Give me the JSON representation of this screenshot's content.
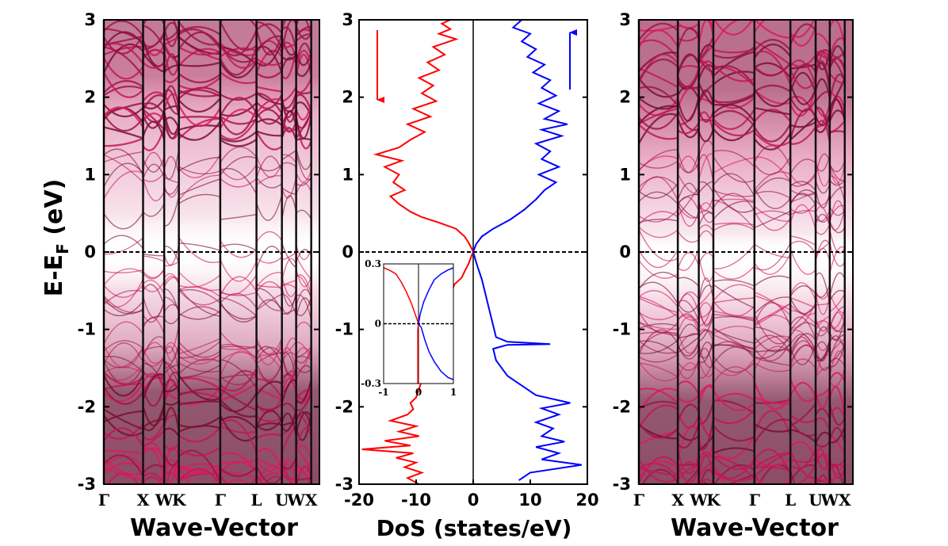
{
  "chart_data": [
    {
      "type": "heatmap",
      "panel": "band-structure-left",
      "ylabel": "E-E",
      "ylabel_sub": "F",
      "ylabel_unit": " (eV)",
      "xlabel": "Wave-Vector",
      "ylim": [
        -3,
        3
      ],
      "yticks": [
        -3,
        -2,
        -1,
        0,
        1,
        2,
        3
      ],
      "kpoints": [
        "Γ",
        "X",
        "W",
        "K",
        "Γ",
        "L",
        "U",
        "W",
        "X"
      ],
      "kpoint_positions": [
        0.0,
        0.182,
        0.28,
        0.348,
        0.54,
        0.708,
        0.826,
        0.892,
        0.962
      ],
      "fermi_level": 0,
      "colormap": [
        "#ffffff",
        "#c2185b",
        "#5a0022"
      ]
    },
    {
      "type": "line",
      "panel": "dos",
      "xlabel": "DoS (states/eV)",
      "xlim": [
        -20,
        20
      ],
      "ylim": [
        -3,
        3
      ],
      "xticks": [
        -20,
        -10,
        0,
        10,
        20
      ],
      "yticks": [
        -3,
        -2,
        -1,
        0,
        1,
        2,
        3
      ],
      "series": [
        {
          "spin": "down",
          "color": "#ff0000",
          "points": [
            [
              -9.5,
              -3.0
            ],
            [
              -11.5,
              -2.92
            ],
            [
              -9.0,
              -2.85
            ],
            [
              -12.0,
              -2.78
            ],
            [
              -10.0,
              -2.72
            ],
            [
              -13.5,
              -2.66
            ],
            [
              -10.5,
              -2.6
            ],
            [
              -19.5,
              -2.55
            ],
            [
              -11.0,
              -2.5
            ],
            [
              -15.5,
              -2.44
            ],
            [
              -9.5,
              -2.38
            ],
            [
              -13.0,
              -2.32
            ],
            [
              -10.0,
              -2.25
            ],
            [
              -14.5,
              -2.18
            ],
            [
              -11.5,
              -2.1
            ],
            [
              -10.5,
              -2.03
            ],
            [
              -11.0,
              -1.95
            ],
            [
              -10.0,
              -1.88
            ],
            [
              -3.3,
              -0.42
            ],
            [
              -2.0,
              -0.33
            ],
            [
              -1.5,
              -0.25
            ],
            [
              -0.8,
              -0.15
            ],
            [
              -0.3,
              -0.05
            ],
            [
              0.0,
              0.0
            ],
            [
              -0.3,
              0.05
            ],
            [
              -0.8,
              0.12
            ],
            [
              -1.5,
              0.2
            ],
            [
              -3.0,
              0.3
            ],
            [
              -6.0,
              0.38
            ],
            [
              -9.0,
              0.45
            ],
            [
              -11.0,
              0.52
            ],
            [
              -13.0,
              0.62
            ],
            [
              -14.5,
              0.72
            ],
            [
              -12.0,
              0.8
            ],
            [
              -14.0,
              0.9
            ],
            [
              -13.0,
              1.0
            ],
            [
              -15.5,
              1.1
            ],
            [
              -12.5,
              1.18
            ],
            [
              -17.0,
              1.26
            ],
            [
              -13.0,
              1.35
            ],
            [
              -11.0,
              1.45
            ],
            [
              -8.5,
              1.55
            ],
            [
              -11.5,
              1.65
            ],
            [
              -7.5,
              1.75
            ],
            [
              -10.5,
              1.85
            ],
            [
              -6.5,
              1.95
            ],
            [
              -9.0,
              2.05
            ],
            [
              -7.0,
              2.15
            ],
            [
              -9.5,
              2.25
            ],
            [
              -6.0,
              2.35
            ],
            [
              -8.0,
              2.45
            ],
            [
              -5.0,
              2.55
            ],
            [
              -7.0,
              2.65
            ],
            [
              -3.0,
              2.75
            ],
            [
              -6.0,
              2.82
            ],
            [
              -4.0,
              2.88
            ],
            [
              -5.5,
              2.95
            ],
            [
              -4.0,
              3.0
            ]
          ]
        },
        {
          "spin": "up",
          "color": "#0000ff",
          "points": [
            [
              8.0,
              -2.95
            ],
            [
              10.0,
              -2.85
            ],
            [
              19.0,
              -2.75
            ],
            [
              12.0,
              -2.68
            ],
            [
              15.0,
              -2.6
            ],
            [
              11.0,
              -2.52
            ],
            [
              16.0,
              -2.45
            ],
            [
              12.0,
              -2.38
            ],
            [
              14.0,
              -2.28
            ],
            [
              11.0,
              -2.2
            ],
            [
              15.0,
              -2.1
            ],
            [
              12.0,
              -2.02
            ],
            [
              17.0,
              -1.95
            ],
            [
              11.0,
              -1.85
            ],
            [
              9.0,
              -1.75
            ],
            [
              6.0,
              -1.6
            ],
            [
              4.0,
              -1.4
            ],
            [
              3.5,
              -1.25
            ],
            [
              6.0,
              -1.2
            ],
            [
              13.5,
              -1.19
            ],
            [
              6.0,
              -1.16
            ],
            [
              4.0,
              -1.1
            ],
            [
              3.5,
              -0.95
            ],
            [
              3.0,
              -0.8
            ],
            [
              2.5,
              -0.65
            ],
            [
              2.0,
              -0.5
            ],
            [
              1.5,
              -0.35
            ],
            [
              0.8,
              -0.2
            ],
            [
              0.3,
              -0.08
            ],
            [
              0.0,
              0.0
            ],
            [
              0.5,
              0.1
            ],
            [
              1.5,
              0.2
            ],
            [
              3.5,
              0.3
            ],
            [
              6.5,
              0.42
            ],
            [
              9.0,
              0.55
            ],
            [
              11.0,
              0.68
            ],
            [
              12.5,
              0.8
            ],
            [
              14.5,
              0.9
            ],
            [
              11.5,
              1.0
            ],
            [
              15.0,
              1.1
            ],
            [
              12.0,
              1.2
            ],
            [
              13.5,
              1.3
            ],
            [
              11.0,
              1.4
            ],
            [
              15.5,
              1.5
            ],
            [
              12.0,
              1.58
            ],
            [
              16.5,
              1.65
            ],
            [
              12.5,
              1.72
            ],
            [
              15.0,
              1.82
            ],
            [
              11.5,
              1.92
            ],
            [
              14.5,
              2.02
            ],
            [
              12.0,
              2.12
            ],
            [
              13.5,
              2.22
            ],
            [
              10.5,
              2.32
            ],
            [
              12.5,
              2.42
            ],
            [
              9.5,
              2.52
            ],
            [
              11.0,
              2.62
            ],
            [
              8.5,
              2.72
            ],
            [
              10.0,
              2.82
            ],
            [
              7.0,
              2.9
            ],
            [
              8.5,
              3.0
            ]
          ]
        }
      ],
      "inset": {
        "xlim": [
          -1,
          1
        ],
        "ylim": [
          -0.3,
          0.3
        ],
        "xticks": [
          -1,
          0,
          1
        ],
        "yticks": [
          -0.3,
          0,
          0.3
        ],
        "ytick_labels": [
          "-0.3",
          "0",
          "0.3"
        ],
        "series": [
          {
            "spin": "down",
            "color": "#ff0000",
            "points": [
              [
                -0.02,
                -0.3
              ],
              [
                -0.02,
                -0.1
              ],
              [
                -0.02,
                -0.03
              ],
              [
                0.0,
                0.0
              ],
              [
                -0.1,
                0.05
              ],
              [
                -0.2,
                0.1
              ],
              [
                -0.35,
                0.16
              ],
              [
                -0.5,
                0.21
              ],
              [
                -0.65,
                0.25
              ],
              [
                -0.85,
                0.27
              ],
              [
                -1.0,
                0.28
              ]
            ]
          },
          {
            "spin": "up",
            "color": "#0000ff",
            "points": [
              [
                1.0,
                -0.28
              ],
              [
                0.85,
                -0.27
              ],
              [
                0.65,
                -0.24
              ],
              [
                0.45,
                -0.19
              ],
              [
                0.3,
                -0.14
              ],
              [
                0.18,
                -0.08
              ],
              [
                0.08,
                -0.02
              ],
              [
                0.0,
                0.0
              ],
              [
                0.05,
                0.05
              ],
              [
                0.15,
                0.11
              ],
              [
                0.3,
                0.17
              ],
              [
                0.45,
                0.22
              ],
              [
                0.65,
                0.25
              ],
              [
                0.85,
                0.27
              ],
              [
                1.0,
                0.28
              ]
            ]
          }
        ]
      }
    },
    {
      "type": "heatmap",
      "panel": "band-structure-right",
      "xlabel": "Wave-Vector",
      "ylim": [
        -3,
        3
      ],
      "yticks": [
        -3,
        -2,
        -1,
        0,
        1,
        2,
        3
      ],
      "kpoints": [
        "Γ",
        "X",
        "W",
        "K",
        "Γ",
        "L",
        "U",
        "W",
        "X"
      ],
      "kpoint_positions": [
        0.0,
        0.182,
        0.28,
        0.348,
        0.54,
        0.708,
        0.826,
        0.892,
        0.962
      ],
      "fermi_level": 0,
      "colormap": [
        "#ffffff",
        "#c2185b",
        "#5a0022"
      ]
    }
  ]
}
